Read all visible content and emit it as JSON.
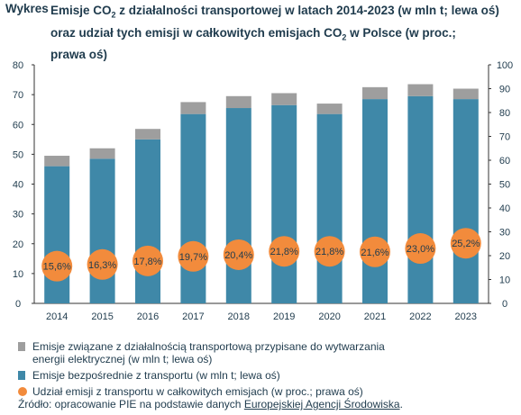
{
  "header": {
    "prefix": "Wykres",
    "title_line1_a": "Emisje CO",
    "title_line1_sub": "2",
    "title_line1_b": " z działalności transportowej w latach 2014-2023 (w mln t; lewa oś)",
    "title_line2_a": "oraz udział tych emisji w całkowitych emisjach CO",
    "title_line2_sub": "2",
    "title_line2_b": " w Polsce (w proc.;",
    "title_line3": "prawa oś)"
  },
  "chart_data": {
    "type": "bar",
    "categories": [
      "2014",
      "2015",
      "2016",
      "2017",
      "2018",
      "2019",
      "2020",
      "2021",
      "2022",
      "2023"
    ],
    "series": [
      {
        "name": "Emisje bezpośrednie z transportu (w mln t; lewa oś)",
        "values": [
          46.0,
          48.5,
          55.0,
          63.5,
          65.5,
          66.5,
          63.5,
          68.5,
          69.5,
          68.5
        ],
        "color": "#3f88a8"
      },
      {
        "name": "Emisje związane z działalnością transportową przypisane do wytwarzania energii elektrycznej (w mln t; lewa oś)",
        "values": [
          3.5,
          3.5,
          3.5,
          4.0,
          4.0,
          4.0,
          3.5,
          4.0,
          4.0,
          3.5
        ],
        "color": "#9e9e9e"
      },
      {
        "name": "Udział emisji z transportu w całkowitych emisjach (w proc.; prawa oś)",
        "values": [
          15.6,
          16.3,
          17.8,
          19.7,
          20.4,
          21.8,
          21.8,
          21.6,
          23.0,
          25.2
        ],
        "labels": [
          "15,6%",
          "16,3%",
          "17,8%",
          "19,7%",
          "20,4%",
          "21,8%",
          "21,8%",
          "21,6%",
          "23,0%",
          "25,2%"
        ],
        "color": "#f28b3c",
        "axis": "right"
      }
    ],
    "ylim_left": [
      0,
      80
    ],
    "ylim_right": [
      0,
      100
    ],
    "yticks_left": [
      "0",
      "10",
      "20",
      "30",
      "40",
      "50",
      "60",
      "70",
      "80"
    ],
    "yticks_right": [
      "0",
      "10",
      "20",
      "30",
      "40",
      "50",
      "60",
      "70",
      "80",
      "90",
      "100"
    ],
    "grid": false,
    "legend_position": "bottom"
  },
  "legend": {
    "item1_line1": "Emisje związane z działalnością transportową przypisane do wytwarzania",
    "item1_line2": "energii elektrycznej (w mln t; lewa oś)",
    "item2": "Emisje bezpośrednie z transportu (w mln t; lewa oś)",
    "item3": "Udział emisji z transportu w całkowitych emisjach (w proc.; prawa oś)"
  },
  "source": {
    "prefix": "Źródło: opracowanie PIE na podstawie danych ",
    "link": "Europejskiej Agencji Środowiska",
    "suffix": "."
  },
  "colors": {
    "direct": "#3f88a8",
    "electricity": "#9e9e9e",
    "share": "#f28b3c",
    "text": "#1f3b4d"
  }
}
